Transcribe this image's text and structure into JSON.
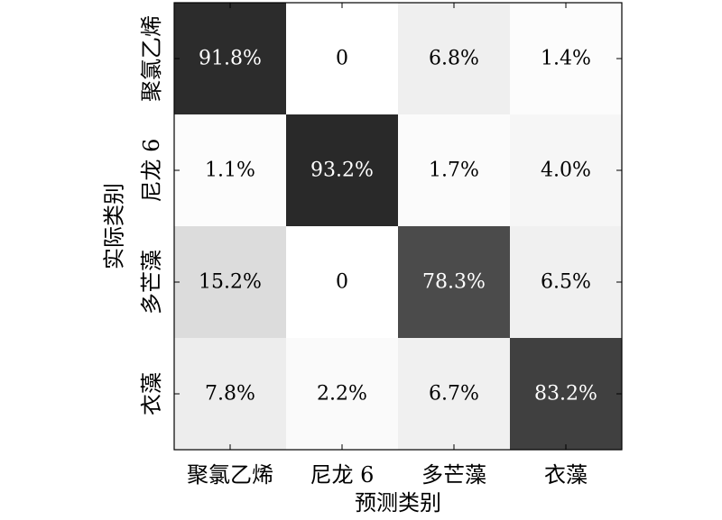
{
  "chart_data": {
    "type": "heatmap",
    "title": "",
    "xlabel": "预测类别",
    "ylabel": "实际类别",
    "x_categories": [
      "聚氯乙烯",
      "尼龙 6",
      "多芒藻",
      "衣藻"
    ],
    "y_categories": [
      "聚氯乙烯",
      "尼龙 6",
      "多芒藻",
      "衣藻"
    ],
    "values": [
      [
        91.8,
        0,
        6.8,
        1.4
      ],
      [
        1.1,
        93.2,
        1.7,
        4.0
      ],
      [
        15.2,
        0,
        78.3,
        6.5
      ],
      [
        7.8,
        2.2,
        6.7,
        83.2
      ]
    ],
    "cell_labels": [
      [
        "91.8%",
        "0",
        "6.8%",
        "1.4%"
      ],
      [
        "1.1%",
        "93.2%",
        "1.7%",
        "4.0%"
      ],
      [
        "15.2%",
        "0",
        "78.3%",
        "6.5%"
      ],
      [
        "7.8%",
        "2.2%",
        "6.7%",
        "83.2%"
      ]
    ],
    "colormap": "grayscale-reversed",
    "value_range": [
      0,
      100
    ],
    "grid": false,
    "legend": "none"
  }
}
